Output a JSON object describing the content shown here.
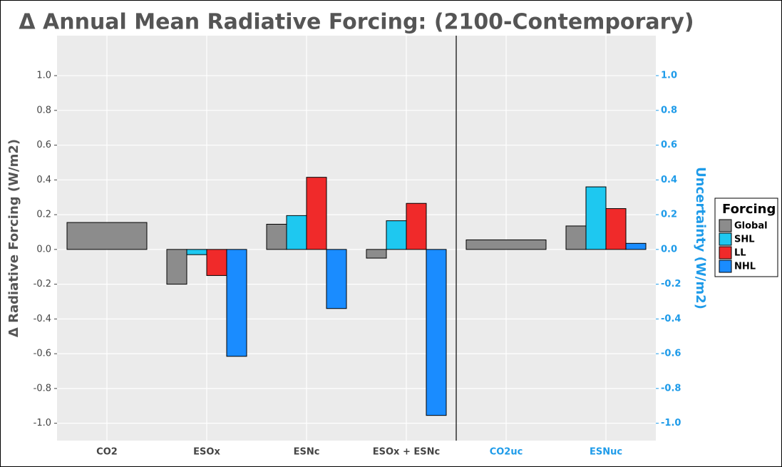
{
  "chart_data": {
    "type": "bar",
    "title": "Δ Annual Mean Radiative Forcing: (2100-Contemporary)",
    "y_label": "Δ Radiative Forcing (W/m2)",
    "y2_label": "Uncertainty (W/m2)",
    "legend_title": "Forcing",
    "legend_position": "right",
    "categories": [
      "CO2",
      "ESOx",
      "ESNc",
      "ESOx + ESNc",
      "CO2uc",
      "ESNuc"
    ],
    "category_label_colors": [
      "#444444",
      "#444444",
      "#444444",
      "#444444",
      "#1e9be9",
      "#1e9be9"
    ],
    "series": [
      {
        "name": "Global",
        "color": "#8c8c8c",
        "values": [
          0.155,
          -0.2,
          0.145,
          -0.05,
          0.055,
          0.135
        ]
      },
      {
        "name": "SHL",
        "color": "#1ec8f0",
        "values": [
          null,
          -0.03,
          0.195,
          0.165,
          null,
          0.36
        ]
      },
      {
        "name": "LL",
        "color": "#f02a2a",
        "values": [
          null,
          -0.15,
          0.415,
          0.265,
          null,
          0.235
        ]
      },
      {
        "name": "NHL",
        "color": "#1a8cff",
        "values": [
          null,
          -0.615,
          -0.34,
          -0.955,
          null,
          0.035
        ]
      }
    ],
    "ylim": [
      -1.1,
      1.23
    ],
    "yticks": [
      {
        "value": -1,
        "label": "-1.0"
      },
      {
        "value": -0.8,
        "label": "-0.8"
      },
      {
        "value": -0.6,
        "label": "-0.6"
      },
      {
        "value": -0.4,
        "label": "-0.4"
      },
      {
        "value": -0.2,
        "label": "-0.2"
      },
      {
        "value": 0,
        "label": "0.0"
      },
      {
        "value": 0.2,
        "label": "0.2"
      },
      {
        "value": 0.4,
        "label": "0.4"
      },
      {
        "value": 0.6,
        "label": "0.6"
      },
      {
        "value": 0.8,
        "label": "0.8"
      },
      {
        "value": 1,
        "label": "1.0"
      }
    ],
    "y2lim": [
      -1.1,
      1.23
    ],
    "y2ticks": [
      {
        "value": -1,
        "label": "-1.0"
      },
      {
        "value": -0.8,
        "label": "-0.8"
      },
      {
        "value": -0.6,
        "label": "-0.6"
      },
      {
        "value": -0.4,
        "label": "-0.4"
      },
      {
        "value": -0.2,
        "label": "-0.2"
      },
      {
        "value": 0,
        "label": "0.0"
      },
      {
        "value": 0.2,
        "label": "0.2"
      },
      {
        "value": 0.4,
        "label": "0.4"
      },
      {
        "value": 0.6,
        "label": "0.6"
      },
      {
        "value": 0.8,
        "label": "0.8"
      },
      {
        "value": 1,
        "label": "1.0"
      }
    ],
    "y2_color": "#1e9be9",
    "divider_after_category": 3,
    "grid": true
  }
}
